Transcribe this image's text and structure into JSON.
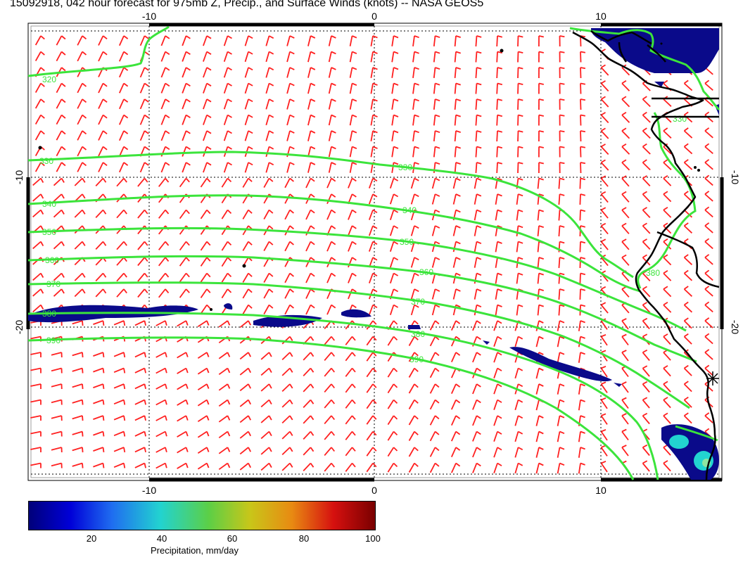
{
  "title": "15092918, 042 hour forecast for 975mb Z, Precip., and Surface Winds (knots) -- NASA GEOS5",
  "axes": {
    "top_ticks": [
      "-10",
      "0",
      "10"
    ],
    "bottom_ticks": [
      "-10",
      "0",
      "10"
    ],
    "left_ticks": [
      "-10",
      "-20"
    ],
    "right_ticks": [
      "-10",
      "-20"
    ]
  },
  "contour_labels": [
    "320",
    "330",
    "330",
    "340",
    "340",
    "350",
    "350",
    "360",
    "360",
    "370",
    "370",
    "380",
    "380",
    "390",
    "390",
    "330",
    "380"
  ],
  "colorbar": {
    "ticks": [
      "20",
      "40",
      "60",
      "80",
      "100"
    ],
    "label": "Precipitation, mm/day"
  },
  "colors": {
    "contour": "#3be43b",
    "wind_barb": "#ff2020",
    "coast": "#000000",
    "precip_low": "#0a0a8a",
    "precip_high": "#22d3d0"
  }
}
